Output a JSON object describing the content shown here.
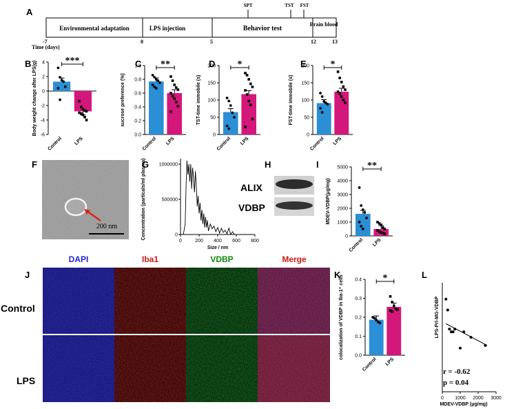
{
  "colors": {
    "control": "#2b8fd6",
    "lps": "#d4177a"
  },
  "panel_labels": [
    "A",
    "B",
    "C",
    "D",
    "E",
    "F",
    "G",
    "H",
    "I",
    "J",
    "K",
    "L"
  ],
  "timeline": {
    "phases": [
      "Environmental adaptation",
      "LPS injection",
      "Behavior test",
      "Brain blood"
    ],
    "ticks": [
      "-7",
      "0",
      "5",
      "12",
      "13"
    ],
    "axis_label": "Time (days)",
    "tests": [
      "SPT",
      "TST",
      "FST"
    ]
  },
  "em": {
    "scale_bar": "200 nm"
  },
  "western": {
    "bands": [
      "ALIX",
      "VDBP"
    ]
  },
  "micro": {
    "columns": [
      "DAPI",
      "Iba1",
      "VDBP",
      "Merge"
    ],
    "rows": [
      "Control",
      "LPS"
    ]
  },
  "correlation": {
    "r": "r = -0.62",
    "p": "p = 0.04"
  },
  "chart_data": [
    {
      "id": "B",
      "type": "bar",
      "categories": [
        "Control",
        "LPS"
      ],
      "values": [
        1.3,
        -2.8
      ],
      "ylabel": "Body weight change after LPS(g)",
      "ylim": [
        -6,
        4
      ],
      "yticks": [
        "4",
        "2",
        "0",
        "-2",
        "-4",
        "-6"
      ],
      "sig": "***",
      "points": [
        [
          3.2,
          1.9,
          1.5,
          1.3,
          0.6,
          0.4,
          -1.2
        ],
        [
          -1.4,
          -2.2,
          -2.5,
          -2.7,
          -2.8,
          -3.0,
          -3.1,
          -3.3,
          -3.6,
          -4.0
        ]
      ]
    },
    {
      "id": "C",
      "type": "bar",
      "categories": [
        "Control",
        "LPS"
      ],
      "values": [
        0.77,
        0.6
      ],
      "ylabel": "sucrose preference (%)",
      "ylim": [
        0,
        1.0
      ],
      "yticks": [
        "1.0",
        "0.8",
        "0.6",
        "0.4",
        "0.2",
        "0.0"
      ],
      "sig": "**",
      "points": [
        [
          0.86,
          0.83,
          0.8,
          0.78,
          0.75,
          0.72,
          0.69,
          0.67
        ],
        [
          0.84,
          0.78,
          0.72,
          0.68,
          0.65,
          0.6,
          0.56,
          0.52,
          0.47,
          0.41,
          0.33
        ]
      ]
    },
    {
      "id": "D",
      "type": "bar",
      "categories": [
        "Control",
        "LPS"
      ],
      "values": [
        65,
        117
      ],
      "ylabel": "TST-time immobile (s)",
      "ylim": [
        0,
        200
      ],
      "yticks": [
        "200",
        "150",
        "100",
        "50",
        "0"
      ],
      "sig": "*",
      "points": [
        [
          106,
          97,
          84,
          63,
          50,
          25,
          17
        ],
        [
          178,
          172,
          160,
          147,
          138,
          128,
          116,
          97,
          86,
          45,
          22
        ]
      ]
    },
    {
      "id": "E",
      "type": "bar",
      "categories": [
        "Control",
        "LPS"
      ],
      "values": [
        91,
        124
      ],
      "ylabel": "FST-time immobile (s)",
      "ylim": [
        0,
        200
      ],
      "yticks": [
        "200",
        "150",
        "100",
        "50",
        "0"
      ],
      "sig": "*",
      "points": [
        [
          120,
          110,
          96,
          92,
          88,
          76,
          64
        ],
        [
          182,
          164,
          152,
          139,
          130,
          124,
          118,
          110,
          100,
          92
        ]
      ]
    },
    {
      "id": "G",
      "type": "line",
      "xlabel": "Size / nm",
      "ylabel": "Concentration (particals/ml plasma)",
      "xlim": [
        0,
        800
      ],
      "ylim": [
        0,
        1000000
      ],
      "xticks": [
        "0",
        "200",
        "400",
        "600",
        "800"
      ],
      "yticks": [
        "1000000",
        "500000",
        "0"
      ],
      "x": [
        30,
        50,
        60,
        70,
        80,
        90,
        100,
        110,
        120,
        130,
        140,
        150,
        160,
        170,
        180,
        190,
        200,
        210,
        220,
        230,
        240,
        250,
        260,
        270,
        280,
        290,
        300,
        320,
        340,
        360,
        380,
        400,
        420,
        440,
        460,
        480,
        500,
        520,
        540,
        560,
        580,
        600
      ],
      "y": [
        0,
        150000,
        700000,
        1050000,
        850000,
        1000000,
        750000,
        1000000,
        650000,
        950000,
        800000,
        600000,
        900000,
        700000,
        400000,
        550000,
        300000,
        450000,
        200000,
        350000,
        150000,
        300000,
        100000,
        250000,
        100000,
        200000,
        50000,
        150000,
        80000,
        120000,
        40000,
        100000,
        20000,
        90000,
        30000,
        60000,
        10000,
        90000,
        0,
        40000,
        0,
        0
      ]
    },
    {
      "id": "I",
      "type": "bar",
      "categories": [
        "Control",
        "LPS"
      ],
      "values": [
        1600,
        500
      ],
      "ylabel": "MDEV-VDBP(μg/mg)",
      "ylim": [
        0,
        5000
      ],
      "yticks": [
        "5000",
        "4000",
        "3000",
        "2000",
        "1000",
        "0"
      ],
      "sig": "**",
      "points": [
        [
          3500,
          2200,
          1900,
          1700,
          1300,
          1000,
          700,
          500
        ],
        [
          1000,
          900,
          800,
          600,
          500,
          400,
          300,
          250,
          200,
          150
        ]
      ]
    },
    {
      "id": "K",
      "type": "bar",
      "categories": [
        "Control",
        "LPS"
      ],
      "values": [
        0.187,
        0.255
      ],
      "ylabel": "colocalization of VDBP in Iba-1⁺ cells",
      "ylim": [
        0,
        0.4
      ],
      "yticks": [
        "0.4",
        "0.3",
        "0.2",
        "0.1",
        "0.0"
      ],
      "sig": "*",
      "points": [
        [
          0.2,
          0.195,
          0.185,
          0.175,
          0.17
        ],
        [
          0.31,
          0.28,
          0.26,
          0.245,
          0.24,
          0.235,
          0.23
        ]
      ]
    },
    {
      "id": "L",
      "type": "scatter",
      "xlabel": "MDEV-VDBP (μg/mg)",
      "ylabel": "LPS-Prl-MG-VDBP",
      "xlim": [
        0,
        3000
      ],
      "ylim": [
        0,
        0.4
      ],
      "xticks": [
        "0",
        "1000",
        "2000",
        "3000"
      ],
      "points": [
        [
          200,
          0.34
        ],
        [
          300,
          0.3
        ],
        [
          400,
          0.23
        ],
        [
          500,
          0.22
        ],
        [
          600,
          0.22
        ],
        [
          700,
          0.23
        ],
        [
          1000,
          0.16
        ],
        [
          1200,
          0.22
        ],
        [
          1600,
          0.2
        ],
        [
          2400,
          0.17
        ]
      ],
      "fit": [
        [
          200,
          0.25
        ],
        [
          2500,
          0.17
        ]
      ]
    }
  ]
}
